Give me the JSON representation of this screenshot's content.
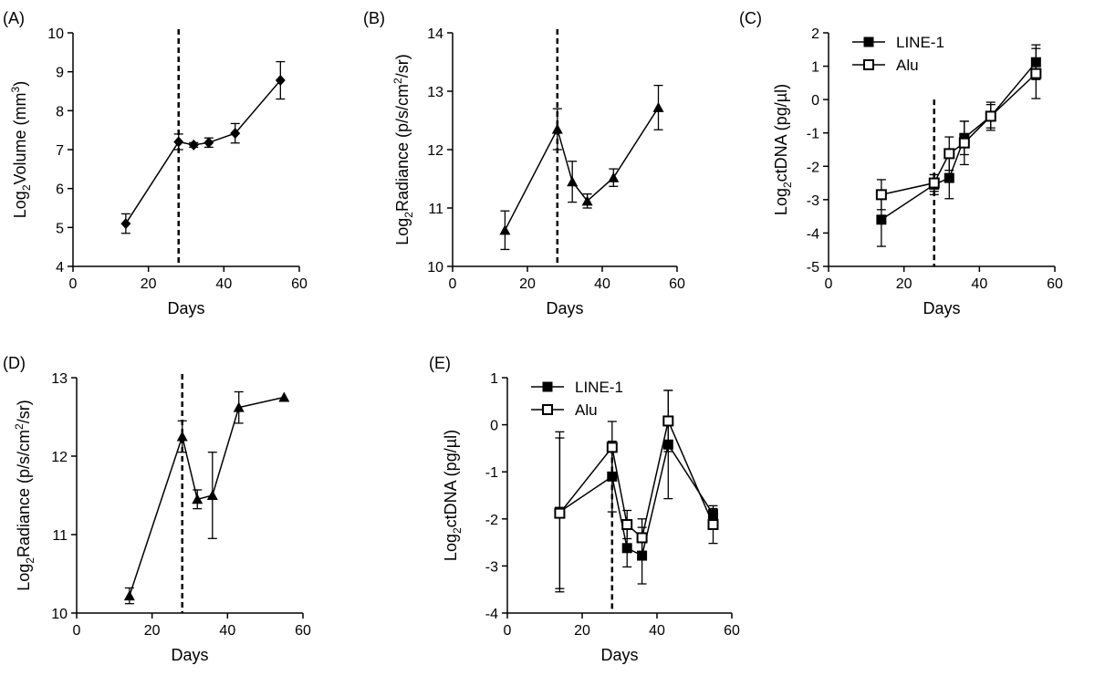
{
  "chart_data": [
    {
      "panel": "(A)",
      "type": "line",
      "xlabel": "Days",
      "ylabel": "Log",
      "ylabel_sub": "2",
      "ylabel_rest": "Volume (mm",
      "ylabel_sup": "3",
      "ylabel_end": ")",
      "xlim": [
        0,
        60
      ],
      "ylim": [
        4,
        10
      ],
      "xticks": [
        0,
        20,
        40,
        60
      ],
      "yticks": [
        4,
        5,
        6,
        7,
        8,
        9,
        10
      ],
      "dashed_x": 28,
      "series": [
        {
          "marker": "diamond",
          "x": [
            14,
            28,
            32,
            36,
            43,
            55
          ],
          "y": [
            5.1,
            7.2,
            7.12,
            7.18,
            7.42,
            8.78
          ],
          "err": [
            0.25,
            0.2,
            0.06,
            0.12,
            0.25,
            0.48
          ]
        }
      ]
    },
    {
      "panel": "(B)",
      "type": "line",
      "xlabel": "Days",
      "ylabel": "Log",
      "ylabel_sub": "2",
      "ylabel_rest": "Radiance (p/s/cm",
      "ylabel_sup": "2",
      "ylabel_end": "/sr)",
      "xlim": [
        0,
        60
      ],
      "ylim": [
        10,
        14
      ],
      "xticks": [
        0,
        20,
        40,
        60
      ],
      "yticks": [
        10,
        11,
        12,
        13,
        14
      ],
      "dashed_x": 28,
      "series": [
        {
          "marker": "triangle",
          "x": [
            14,
            28,
            32,
            36,
            43,
            55
          ],
          "y": [
            10.62,
            12.35,
            11.45,
            11.12,
            11.52,
            12.72
          ],
          "err": [
            0.33,
            0.35,
            0.35,
            0.12,
            0.15,
            0.38
          ]
        }
      ]
    },
    {
      "panel": "(C)",
      "type": "line",
      "xlabel": "Days",
      "ylabel": "Log",
      "ylabel_sub": "2",
      "ylabel_rest": "ctDNA (pg/µl)",
      "ylabel_sup": "",
      "ylabel_end": "",
      "xlim": [
        0,
        60
      ],
      "ylim": [
        -5,
        2
      ],
      "xticks": [
        0,
        20,
        40,
        60
      ],
      "yticks": [
        -5,
        -4,
        -3,
        -2,
        -1,
        0,
        1,
        2
      ],
      "dashed_x": 28,
      "dashed_ytop": 0,
      "legend": [
        "LINE-1",
        "Alu"
      ],
      "series": [
        {
          "name": "LINE-1",
          "marker": "square-filled",
          "x": [
            14,
            28,
            32,
            36,
            43,
            55
          ],
          "y": [
            -3.6,
            -2.55,
            -2.35,
            -1.15,
            -0.5,
            1.12
          ],
          "err": [
            0.8,
            0.3,
            0.62,
            0.5,
            0.35,
            0.52
          ]
        },
        {
          "name": "Alu",
          "marker": "square-open",
          "x": [
            14,
            28,
            32,
            36,
            43,
            55
          ],
          "y": [
            -2.85,
            -2.5,
            -1.62,
            -1.3,
            -0.5,
            0.78
          ],
          "err": [
            0.45,
            0.25,
            0.5,
            0.65,
            0.42,
            0.75
          ]
        }
      ]
    },
    {
      "panel": "(D)",
      "type": "line",
      "xlabel": "Days",
      "ylabel": "Log",
      "ylabel_sub": "2",
      "ylabel_rest": "Radiance (p/s/cm",
      "ylabel_sup": "2",
      "ylabel_end": "/sr)",
      "xlim": [
        0,
        60
      ],
      "ylim": [
        10,
        13
      ],
      "xticks": [
        0,
        20,
        40,
        60
      ],
      "yticks": [
        10,
        11,
        12,
        13
      ],
      "dashed_x": 28,
      "series": [
        {
          "marker": "triangle",
          "x": [
            14,
            28,
            32,
            36,
            43,
            55
          ],
          "y": [
            10.22,
            12.25,
            11.45,
            11.5,
            12.62,
            12.75
          ],
          "err": [
            0.1,
            0.2,
            0.12,
            0.55,
            0.2,
            0
          ]
        }
      ]
    },
    {
      "panel": "(E)",
      "type": "line",
      "xlabel": "Days",
      "ylabel": "Log",
      "ylabel_sub": "2",
      "ylabel_rest": "ctDNA (pg/µl)",
      "ylabel_sup": "",
      "ylabel_end": "",
      "xlim": [
        0,
        60
      ],
      "ylim": [
        -4,
        1
      ],
      "xticks": [
        0,
        20,
        40,
        60
      ],
      "yticks": [
        -4,
        -3,
        -2,
        -1,
        0,
        1
      ],
      "dashed_x": 28,
      "dashed_ytop": -0.5,
      "legend": [
        "LINE-1",
        "Alu"
      ],
      "series": [
        {
          "name": "LINE-1",
          "marker": "square-filled",
          "x": [
            14,
            28,
            32,
            36,
            43,
            55
          ],
          "y": [
            -1.85,
            -1.1,
            -2.62,
            -2.78,
            -0.42,
            -1.9
          ],
          "err": [
            1.7,
            0.75,
            0.4,
            0.6,
            1.15,
            0.12
          ]
        },
        {
          "name": "Alu",
          "marker": "square-open",
          "x": [
            14,
            28,
            32,
            36,
            43,
            55
          ],
          "y": [
            -1.88,
            -0.48,
            -2.12,
            -2.4,
            0.08,
            -2.12
          ],
          "err": [
            1.6,
            0.55,
            0.3,
            0.4,
            0.65,
            0.4
          ]
        }
      ]
    }
  ]
}
